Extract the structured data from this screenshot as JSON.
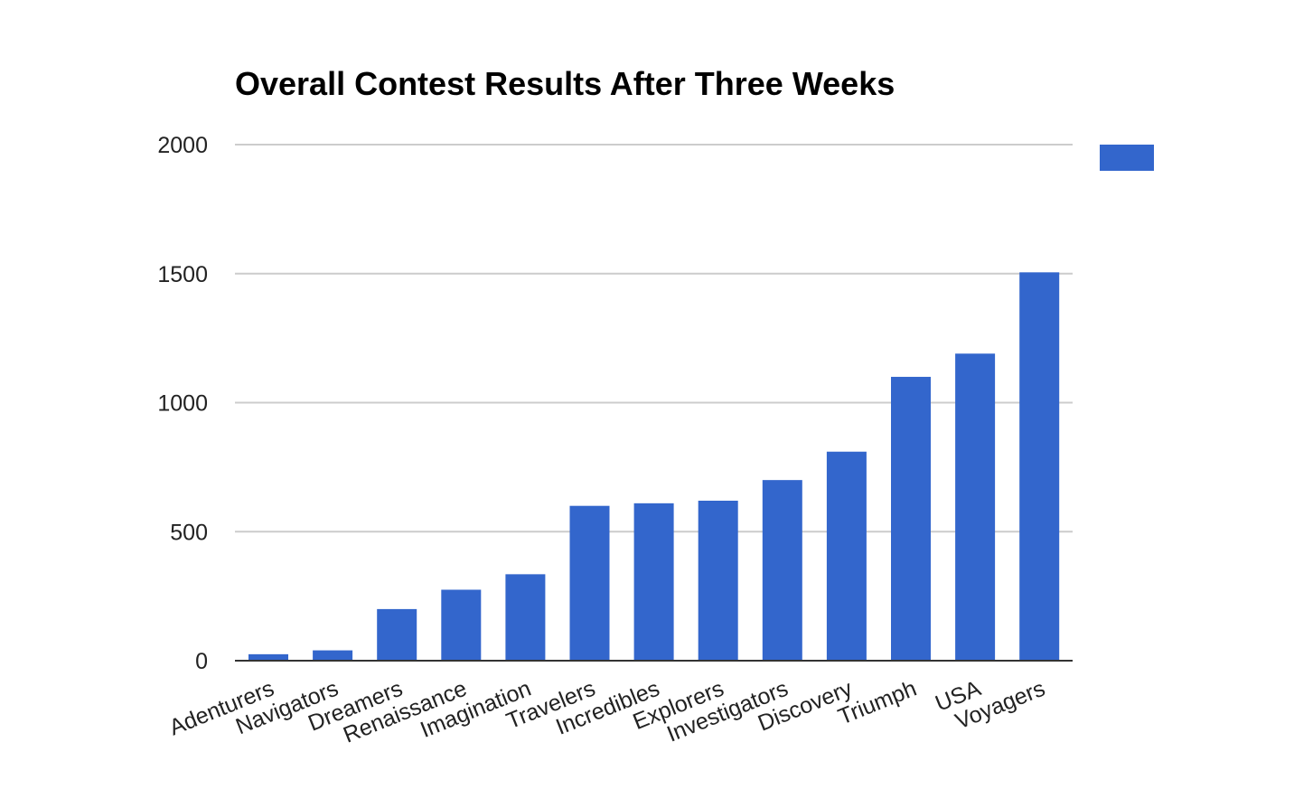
{
  "chart_data": {
    "type": "bar",
    "title": "Overall Contest Results After Three Weeks",
    "xlabel": "",
    "ylabel": "",
    "categories": [
      "Adenturers",
      "Navigators",
      "Dreamers",
      "Renaissance",
      "Imagination",
      "Travelers",
      "Incredibles",
      "Explorers",
      "Investigators",
      "Discovery",
      "Triumph",
      "USA",
      "Voyagers"
    ],
    "values": [
      25,
      40,
      200,
      275,
      335,
      600,
      610,
      620,
      700,
      810,
      1100,
      1190,
      1505
    ],
    "ylim": [
      0,
      2000
    ],
    "yticks": [
      "0",
      "500",
      "1000",
      "1500",
      "2000"
    ],
    "grid": true,
    "legend": "top-right",
    "bar_color": "#3366cc"
  }
}
